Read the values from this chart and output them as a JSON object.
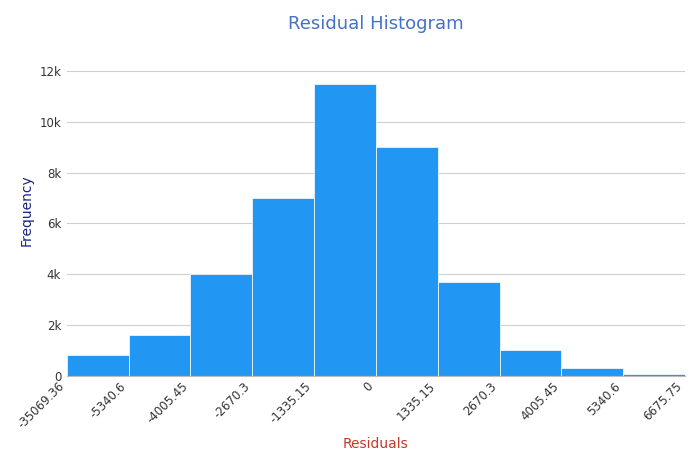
{
  "title": "Residual Histogram",
  "title_color": "#4472c4",
  "xlabel": "Residuals",
  "xlabel_color": "#c0392b",
  "ylabel": "Frequency",
  "ylabel_color": "#1a237e",
  "bar_color": "#2196f3",
  "background_color": "#ffffff",
  "bin_edge_labels": [
    "-35069.36",
    "-5340.6",
    "-4005.45",
    "-2670.3",
    "-1335.15",
    "0",
    "1335.15",
    "2670.3",
    "4005.45",
    "5340.6",
    "6675.75"
  ],
  "bar_heights": [
    800,
    1600,
    4000,
    7000,
    11500,
    9000,
    3700,
    1000,
    300,
    50
  ],
  "ytick_values": [
    0,
    2000,
    4000,
    6000,
    8000,
    10000,
    12000
  ],
  "ytick_labels": [
    "0",
    "2k",
    "4k",
    "6k",
    "8k",
    "10k",
    "12k"
  ],
  "ylim": [
    0,
    13000
  ],
  "grid_color": "#d0d0d0",
  "title_fontsize": 13,
  "label_fontsize": 10,
  "tick_fontsize": 8.5
}
